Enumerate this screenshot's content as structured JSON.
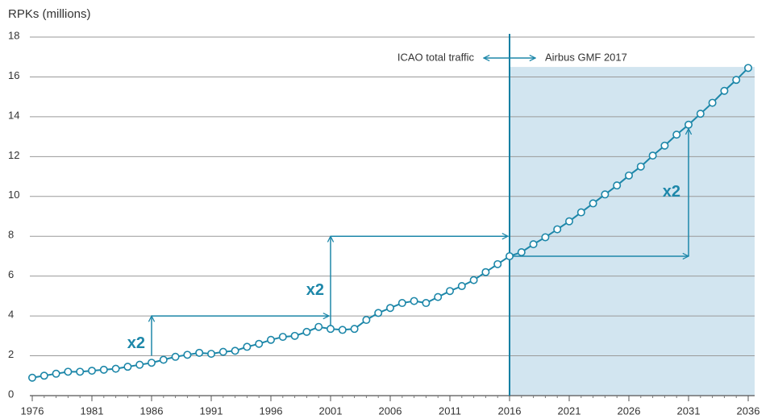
{
  "chart_data": {
    "type": "line",
    "y_axis_title": "RPKs (millions)",
    "x": [
      1976,
      1977,
      1978,
      1979,
      1980,
      1981,
      1982,
      1983,
      1984,
      1985,
      1986,
      1987,
      1988,
      1989,
      1990,
      1991,
      1992,
      1993,
      1994,
      1995,
      1996,
      1997,
      1998,
      1999,
      2000,
      2001,
      2002,
      2003,
      2004,
      2005,
      2006,
      2007,
      2008,
      2009,
      2010,
      2011,
      2012,
      2013,
      2014,
      2015,
      2016,
      2017,
      2018,
      2019,
      2020,
      2021,
      2022,
      2023,
      2024,
      2025,
      2026,
      2027,
      2028,
      2029,
      2030,
      2031,
      2032,
      2033,
      2034,
      2035,
      2036
    ],
    "values": [
      0.9,
      1.0,
      1.1,
      1.2,
      1.2,
      1.25,
      1.3,
      1.35,
      1.45,
      1.55,
      1.65,
      1.8,
      1.95,
      2.05,
      2.15,
      2.1,
      2.2,
      2.25,
      2.45,
      2.6,
      2.8,
      2.95,
      3.0,
      3.2,
      3.45,
      3.35,
      3.3,
      3.35,
      3.8,
      4.15,
      4.4,
      4.65,
      4.75,
      4.65,
      4.95,
      5.25,
      5.5,
      5.8,
      6.2,
      6.6,
      7.0,
      7.2,
      7.6,
      7.95,
      8.35,
      8.75,
      9.2,
      9.65,
      10.1,
      10.55,
      11.05,
      11.5,
      12.05,
      12.55,
      13.1,
      13.6,
      14.15,
      14.7,
      15.3,
      15.85,
      16.45
    ],
    "color": "#1d87a9",
    "xlim": [
      1976,
      2036
    ],
    "xticks": [
      1976,
      1981,
      1986,
      1991,
      1996,
      2001,
      2006,
      2011,
      2016,
      2021,
      2026,
      2031,
      2036
    ],
    "ylim": [
      0,
      18
    ],
    "yticks": [
      0,
      2,
      4,
      6,
      8,
      10,
      12,
      14,
      16,
      18
    ],
    "grid": true,
    "divider": {
      "x": 2016,
      "left_label": "ICAO total traffic",
      "right_label": "Airbus GMF 2017"
    },
    "forecast_region": {
      "x_start": 2016,
      "x_end": 2036,
      "top": 16.5,
      "color": "#d2e5f0"
    },
    "doublings": [
      {
        "label": "x2",
        "x_start": 1986,
        "x_end": 2001,
        "y_start": 2,
        "y_end": 4,
        "route": "up-then-right"
      },
      {
        "label": "x2",
        "x_start": 2001,
        "x_end": 2016,
        "y_start": 3.35,
        "y_end": 8,
        "route": "up-then-right"
      },
      {
        "label": "x2",
        "x_start": 2016,
        "x_end": 2031,
        "y_start": 7,
        "y_end": 13.4,
        "route": "right-then-up"
      }
    ]
  }
}
